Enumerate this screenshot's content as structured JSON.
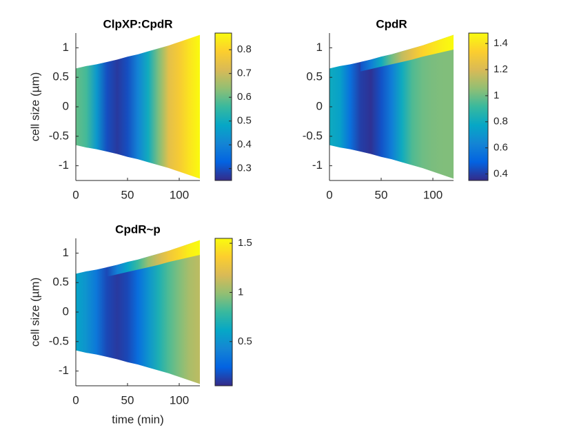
{
  "colormap": [
    "#352a87",
    "#0363e1",
    "#1485d4",
    "#06a7c6",
    "#38b99e",
    "#92bf73",
    "#d9ba56",
    "#fcce2e",
    "#f9fb0e"
  ],
  "chart_data": [
    {
      "type": "kymograph",
      "title": "ClpXP:CpdR",
      "ylabel": "cell size (µm)",
      "x": [
        0,
        10,
        20,
        30,
        40,
        50,
        60,
        70,
        80,
        90,
        100,
        110,
        120
      ],
      "half_width": [
        0.65,
        0.69,
        0.72,
        0.76,
        0.8,
        0.85,
        0.89,
        0.94,
        0.99,
        1.04,
        1.1,
        1.16,
        1.22
      ],
      "values": [
        0.6,
        0.57,
        0.45,
        0.3,
        0.27,
        0.3,
        0.4,
        0.5,
        0.62,
        0.74,
        0.78,
        0.83,
        0.87
      ],
      "xlim": [
        0,
        120
      ],
      "ylim": [
        -1.25,
        1.25
      ],
      "xticks": [
        0,
        50,
        100
      ],
      "yticks": [
        -1,
        -0.5,
        0,
        0.5,
        1
      ],
      "clim": [
        0.25,
        0.87
      ],
      "cticks": [
        0.3,
        0.4,
        0.5,
        0.6,
        0.7,
        0.8
      ]
    },
    {
      "type": "kymograph",
      "title": "CpdR",
      "x": [
        0,
        10,
        20,
        30,
        40,
        50,
        60,
        70,
        80,
        90,
        100,
        110,
        120
      ],
      "half_width": [
        0.65,
        0.69,
        0.72,
        0.76,
        0.8,
        0.85,
        0.89,
        0.94,
        0.99,
        1.04,
        1.1,
        1.16,
        1.22
      ],
      "values": [
        0.8,
        0.75,
        0.55,
        0.4,
        0.37,
        0.45,
        0.6,
        0.8,
        0.95,
        1.0,
        1.02,
        1.03,
        1.03
      ],
      "pole_boundary": [
        null,
        null,
        null,
        0.6,
        0.64,
        0.68,
        0.72,
        0.76,
        0.8,
        0.85,
        0.89,
        0.93,
        0.97
      ],
      "pole_values": [
        null,
        null,
        null,
        0.45,
        0.6,
        0.8,
        1.0,
        1.15,
        1.25,
        1.35,
        1.4,
        1.45,
        1.48
      ],
      "xlim": [
        0,
        120
      ],
      "ylim": [
        -1.25,
        1.25
      ],
      "xticks": [
        0,
        50,
        100
      ],
      "yticks": [
        -1,
        -0.5,
        0,
        0.5,
        1
      ],
      "clim": [
        0.35,
        1.48
      ],
      "cticks": [
        0.4,
        0.6,
        0.8,
        1,
        1.2,
        1.4
      ]
    },
    {
      "type": "kymograph",
      "title": "CpdR~p",
      "ylabel": "cell size (µm)",
      "xlabel": "time (min)",
      "x": [
        0,
        10,
        20,
        30,
        40,
        50,
        60,
        70,
        80,
        90,
        100,
        110,
        120
      ],
      "half_width": [
        0.65,
        0.69,
        0.72,
        0.76,
        0.8,
        0.85,
        0.89,
        0.94,
        0.99,
        1.04,
        1.1,
        1.16,
        1.22
      ],
      "values": [
        0.6,
        0.5,
        0.35,
        0.15,
        0.1,
        0.15,
        0.3,
        0.5,
        0.7,
        0.85,
        0.95,
        1.05,
        1.1
      ],
      "pole_boundary": [
        null,
        null,
        null,
        0.6,
        0.64,
        0.68,
        0.72,
        0.76,
        0.8,
        0.85,
        0.89,
        0.93,
        0.97
      ],
      "pole_values": [
        null,
        null,
        null,
        0.15,
        0.4,
        0.6,
        0.8,
        1.0,
        1.15,
        1.3,
        1.4,
        1.5,
        1.55
      ],
      "xlim": [
        0,
        120
      ],
      "ylim": [
        -1.25,
        1.25
      ],
      "xticks": [
        0,
        50,
        100
      ],
      "yticks": [
        -1,
        -0.5,
        0,
        0.5,
        1
      ],
      "clim": [
        0.05,
        1.55
      ],
      "cticks": [
        0.5,
        1,
        1.5
      ]
    }
  ]
}
